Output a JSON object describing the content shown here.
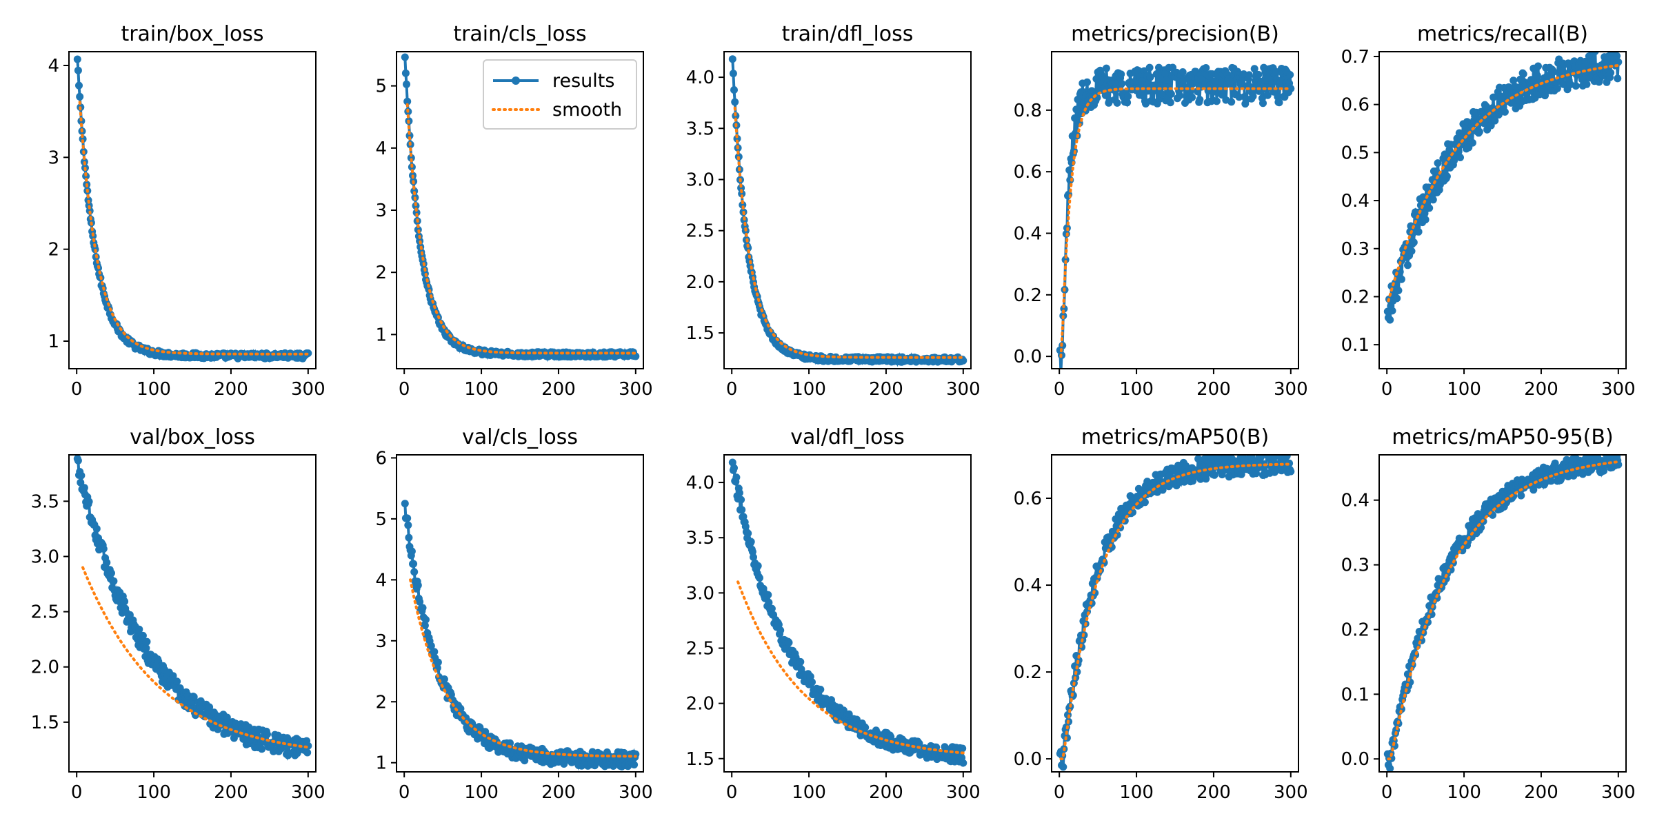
{
  "colors": {
    "results": "#1f77b4",
    "smooth": "#ff7f0e",
    "axes": "#000000",
    "background": "#ffffff"
  },
  "legend": {
    "location": "top-right",
    "panel": "train/cls_loss",
    "entries": [
      "results",
      "smooth"
    ]
  },
  "chart_data": [
    {
      "type": "line",
      "title": "train/box_loss",
      "xlabel": "",
      "ylabel": "",
      "xlim": [
        -10,
        310
      ],
      "ylim": [
        0.7,
        4.15
      ],
      "xticks": [
        0,
        100,
        200,
        300
      ],
      "xtick_labels": [
        "0",
        "100",
        "200",
        "300"
      ],
      "yticks": [
        1,
        2,
        3,
        4
      ],
      "ytick_labels": [
        "1",
        "2",
        "3",
        "4"
      ],
      "curve": {
        "kind": "decay",
        "x0": 1,
        "x1": 300,
        "y0": 4.06,
        "y1": 0.84,
        "tau": 22,
        "noise": 0.03
      },
      "smooth": {
        "kind": "decay",
        "x0": 4,
        "x1": 300,
        "y0": 3.6,
        "y1": 0.86,
        "tau": 23
      }
    },
    {
      "type": "line",
      "title": "train/cls_loss",
      "xlabel": "",
      "ylabel": "",
      "xlim": [
        -10,
        310
      ],
      "ylim": [
        0.45,
        5.55
      ],
      "xticks": [
        0,
        100,
        200,
        300
      ],
      "xtick_labels": [
        "0",
        "100",
        "200",
        "300"
      ],
      "yticks": [
        1,
        2,
        3,
        4,
        5
      ],
      "ytick_labels": [
        "1",
        "2",
        "3",
        "4",
        "5"
      ],
      "legend": true,
      "curve": {
        "kind": "decay",
        "x0": 1,
        "x1": 300,
        "y0": 5.45,
        "y1": 0.68,
        "tau": 20,
        "noise": 0.04
      },
      "smooth": {
        "kind": "decay",
        "x0": 4,
        "x1": 300,
        "y0": 4.7,
        "y1": 0.7,
        "tau": 21
      }
    },
    {
      "type": "line",
      "title": "train/dfl_loss",
      "xlabel": "",
      "ylabel": "",
      "xlim": [
        -10,
        310
      ],
      "ylim": [
        1.15,
        4.25
      ],
      "xticks": [
        0,
        100,
        200,
        300
      ],
      "xtick_labels": [
        "0",
        "100",
        "200",
        "300"
      ],
      "yticks": [
        1.5,
        2.0,
        2.5,
        3.0,
        3.5,
        4.0
      ],
      "ytick_labels": [
        "1.5",
        "2.0",
        "2.5",
        "3.0",
        "3.5",
        "4.0"
      ],
      "curve": {
        "kind": "decay",
        "x0": 1,
        "x1": 300,
        "y0": 4.17,
        "y1": 1.24,
        "tau": 20,
        "noise": 0.025
      },
      "smooth": {
        "kind": "decay",
        "x0": 4,
        "x1": 300,
        "y0": 3.7,
        "y1": 1.26,
        "tau": 21
      }
    },
    {
      "type": "line",
      "title": "metrics/precision(B)",
      "xlabel": "",
      "ylabel": "",
      "xlim": [
        -10,
        310
      ],
      "ylim": [
        -0.04,
        0.99
      ],
      "xticks": [
        0,
        100,
        200,
        300
      ],
      "xtick_labels": [
        "0",
        "100",
        "200",
        "300"
      ],
      "yticks": [
        0.0,
        0.2,
        0.4,
        0.6,
        0.8
      ],
      "ytick_labels": [
        "0.0",
        "0.2",
        "0.4",
        "0.6",
        "0.8"
      ],
      "curve": {
        "kind": "rise",
        "x0": 1,
        "x1": 300,
        "ystart": 0.0,
        "yend": 0.88,
        "tau": 9,
        "delay": 4,
        "noise": 0.06
      },
      "smooth": {
        "kind": "rise",
        "x0": 2,
        "x1": 300,
        "ystart": 0.0,
        "yend": 0.87,
        "tau": 12,
        "delay": 3
      }
    },
    {
      "type": "line",
      "title": "metrics/recall(B)",
      "xlabel": "",
      "ylabel": "",
      "xlim": [
        -10,
        310
      ],
      "ylim": [
        0.05,
        0.71
      ],
      "xticks": [
        0,
        100,
        200,
        300
      ],
      "xtick_labels": [
        "0",
        "100",
        "200",
        "300"
      ],
      "yticks": [
        0.1,
        0.2,
        0.3,
        0.4,
        0.5,
        0.6,
        0.7
      ],
      "ytick_labels": [
        "0.1",
        "0.2",
        "0.3",
        "0.4",
        "0.5",
        "0.6",
        "0.7"
      ],
      "curve": {
        "kind": "rise",
        "x0": 1,
        "x1": 300,
        "ystart": 0.15,
        "yend": 0.7,
        "tau": 85,
        "delay": 0,
        "noise": 0.035
      },
      "smooth": {
        "kind": "rise",
        "x0": 2,
        "x1": 300,
        "ystart": 0.18,
        "yend": 0.7,
        "tau": 90,
        "delay": 0
      }
    },
    {
      "type": "line",
      "title": "val/box_loss",
      "xlabel": "",
      "ylabel": "",
      "xlim": [
        -10,
        310
      ],
      "ylim": [
        1.05,
        3.92
      ],
      "xticks": [
        0,
        100,
        200,
        300
      ],
      "xtick_labels": [
        "0",
        "100",
        "200",
        "300"
      ],
      "yticks": [
        1.5,
        2.0,
        2.5,
        3.0,
        3.5
      ],
      "ytick_labels": [
        "1.5",
        "2.0",
        "2.5",
        "3.0",
        "3.5"
      ],
      "curve": {
        "kind": "decay",
        "x0": 1,
        "x1": 300,
        "y0": 3.85,
        "y1": 1.15,
        "tau": 90,
        "noise": 0.09
      },
      "smooth": {
        "kind": "decay",
        "x0": 8,
        "x1": 300,
        "y0": 2.9,
        "y1": 1.18,
        "tau": 100
      }
    },
    {
      "type": "line",
      "title": "val/cls_loss",
      "xlabel": "",
      "ylabel": "",
      "xlim": [
        -10,
        310
      ],
      "ylim": [
        0.85,
        6.05
      ],
      "xticks": [
        0,
        100,
        200,
        300
      ],
      "xtick_labels": [
        "0",
        "100",
        "200",
        "300"
      ],
      "yticks": [
        1,
        2,
        3,
        4,
        5,
        6
      ],
      "ytick_labels": [
        "1",
        "2",
        "3",
        "4",
        "5",
        "6"
      ],
      "curve": {
        "kind": "decay",
        "x0": 1,
        "x1": 300,
        "y0": 5.2,
        "y1": 1.05,
        "tau": 42,
        "noise": 0.12
      },
      "smooth": {
        "kind": "decay",
        "x0": 8,
        "x1": 300,
        "y0": 4.0,
        "y1": 1.1,
        "tau": 45
      }
    },
    {
      "type": "line",
      "title": "val/dfl_loss",
      "xlabel": "",
      "ylabel": "",
      "xlim": [
        -10,
        310
      ],
      "ylim": [
        1.38,
        4.25
      ],
      "xticks": [
        0,
        100,
        200,
        300
      ],
      "xtick_labels": [
        "0",
        "100",
        "200",
        "300"
      ],
      "yticks": [
        1.5,
        2.0,
        2.5,
        3.0,
        3.5,
        4.0
      ],
      "ytick_labels": [
        "1.5",
        "2.0",
        "2.5",
        "3.0",
        "3.5",
        "4.0"
      ],
      "curve": {
        "kind": "decay",
        "x0": 1,
        "x1": 300,
        "y0": 4.15,
        "y1": 1.48,
        "tau": 75,
        "noise": 0.07
      },
      "smooth": {
        "kind": "decay",
        "x0": 8,
        "x1": 300,
        "y0": 3.1,
        "y1": 1.5,
        "tau": 85
      }
    },
    {
      "type": "line",
      "title": "metrics/mAP50(B)",
      "xlabel": "",
      "ylabel": "",
      "xlim": [
        -10,
        310
      ],
      "ylim": [
        -0.03,
        0.7
      ],
      "xticks": [
        0,
        100,
        200,
        300
      ],
      "xtick_labels": [
        "0",
        "100",
        "200",
        "300"
      ],
      "yticks": [
        0.0,
        0.2,
        0.4,
        0.6
      ],
      "ytick_labels": [
        "0.0",
        "0.2",
        "0.4",
        "0.6"
      ],
      "curve": {
        "kind": "rise",
        "x0": 1,
        "x1": 300,
        "ystart": 0.0,
        "yend": 0.68,
        "tau": 45,
        "delay": 5,
        "noise": 0.025
      },
      "smooth": {
        "kind": "rise",
        "x0": 2,
        "x1": 300,
        "ystart": 0.0,
        "yend": 0.68,
        "tau": 48,
        "delay": 5
      }
    },
    {
      "type": "line",
      "title": "metrics/mAP50-95(B)",
      "xlabel": "",
      "ylabel": "",
      "xlim": [
        -10,
        310
      ],
      "ylim": [
        -0.02,
        0.47
      ],
      "xticks": [
        0,
        100,
        200,
        300
      ],
      "xtick_labels": [
        "0",
        "100",
        "200",
        "300"
      ],
      "yticks": [
        0.0,
        0.1,
        0.2,
        0.3,
        0.4
      ],
      "ytick_labels": [
        "0.0",
        "0.1",
        "0.2",
        "0.3",
        "0.4"
      ],
      "curve": {
        "kind": "rise",
        "x0": 1,
        "x1": 300,
        "ystart": 0.0,
        "yend": 0.47,
        "tau": 75,
        "delay": 5,
        "noise": 0.015
      },
      "smooth": {
        "kind": "rise",
        "x0": 2,
        "x1": 300,
        "ystart": 0.0,
        "yend": 0.47,
        "tau": 78,
        "delay": 5
      }
    }
  ]
}
